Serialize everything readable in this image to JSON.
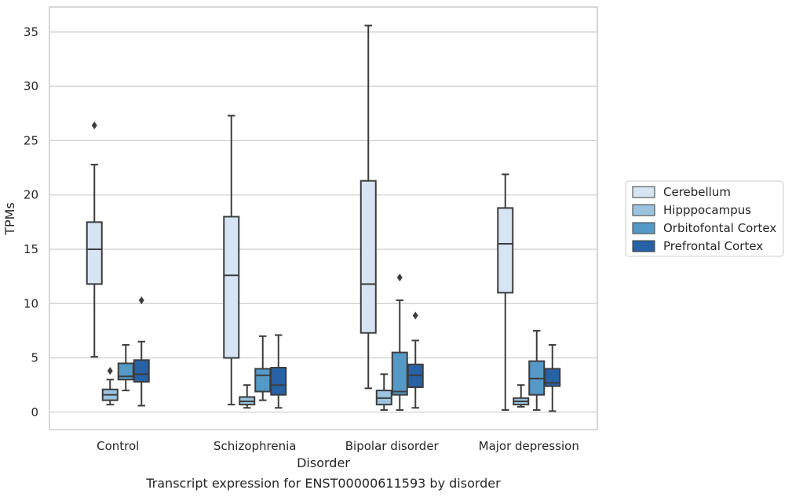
{
  "chart_data": {
    "type": "box",
    "xlabel": "Disorder",
    "ylabel": "TPMs",
    "caption": "Transcript expression for ENST00000611593 by disorder",
    "categories": [
      "Control",
      "Schizophrenia",
      "Bipolar disorder",
      "Major depression"
    ],
    "yticks": [
      0,
      5,
      10,
      15,
      20,
      25,
      30,
      35
    ],
    "ylim": [
      -1.6,
      37.3
    ],
    "grid": "horizontal",
    "legend_position": "right",
    "series": [
      {
        "name": "Cerebellum",
        "color": "#d6e4f3",
        "boxes": [
          {
            "whislo": 5.1,
            "q1": 11.8,
            "med": 15.0,
            "q3": 17.5,
            "whishi": 22.8,
            "fliers": [
              26.4
            ]
          },
          {
            "whislo": 0.7,
            "q1": 5.0,
            "med": 12.6,
            "q3": 18.0,
            "whishi": 27.3,
            "fliers": []
          },
          {
            "whislo": 2.2,
            "q1": 7.3,
            "med": 11.8,
            "q3": 21.3,
            "whishi": 35.6,
            "fliers": []
          },
          {
            "whislo": 0.2,
            "q1": 11.0,
            "med": 15.5,
            "q3": 18.8,
            "whishi": 21.9,
            "fliers": []
          }
        ]
      },
      {
        "name": "Hipppocampus",
        "color": "#9cc4df",
        "boxes": [
          {
            "whislo": 0.7,
            "q1": 1.1,
            "med": 1.6,
            "q3": 2.1,
            "whishi": 3.0,
            "fliers": [
              3.8
            ]
          },
          {
            "whislo": 0.4,
            "q1": 0.7,
            "med": 1.0,
            "q3": 1.4,
            "whishi": 2.5,
            "fliers": []
          },
          {
            "whislo": 0.2,
            "q1": 0.7,
            "med": 1.3,
            "q3": 2.0,
            "whishi": 3.5,
            "fliers": []
          },
          {
            "whislo": 0.5,
            "q1": 0.7,
            "med": 1.0,
            "q3": 1.3,
            "whishi": 2.5,
            "fliers": []
          }
        ]
      },
      {
        "name": "Orbitofontal Cortex",
        "color": "#5599c7",
        "boxes": [
          {
            "whislo": 2.0,
            "q1": 3.0,
            "med": 3.3,
            "q3": 4.5,
            "whishi": 6.2,
            "fliers": []
          },
          {
            "whislo": 1.1,
            "q1": 1.9,
            "med": 3.4,
            "q3": 4.0,
            "whishi": 7.0,
            "fliers": []
          },
          {
            "whislo": 0.2,
            "q1": 1.6,
            "med": 1.9,
            "q3": 5.5,
            "whishi": 10.3,
            "fliers": [
              12.4
            ]
          },
          {
            "whislo": 0.2,
            "q1": 1.6,
            "med": 3.1,
            "q3": 4.7,
            "whishi": 7.5,
            "fliers": []
          }
        ]
      },
      {
        "name": "Prefrontal Cortex",
        "color": "#2662a5",
        "boxes": [
          {
            "whislo": 0.6,
            "q1": 2.8,
            "med": 3.5,
            "q3": 4.8,
            "whishi": 6.5,
            "fliers": [
              10.3
            ]
          },
          {
            "whislo": 0.4,
            "q1": 1.6,
            "med": 2.5,
            "q3": 4.1,
            "whishi": 7.1,
            "fliers": []
          },
          {
            "whislo": 0.4,
            "q1": 2.3,
            "med": 3.4,
            "q3": 4.4,
            "whishi": 6.6,
            "fliers": [
              8.9
            ]
          },
          {
            "whislo": 0.1,
            "q1": 2.4,
            "med": 2.7,
            "q3": 4.0,
            "whishi": 6.2,
            "fliers": []
          }
        ]
      }
    ]
  }
}
